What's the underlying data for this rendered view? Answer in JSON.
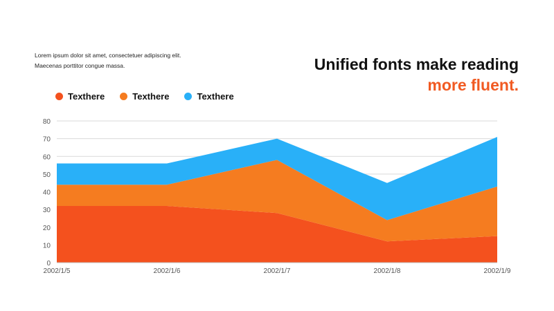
{
  "intro": {
    "line1": "Lorem ipsum dolor sit amet, consectetuer adipiscing elit.",
    "line2": "Maecenas porttitor congue massa."
  },
  "headline": {
    "line1": "Unified fonts make reading",
    "line2": "more fluent."
  },
  "colors": {
    "accent": "#f15a22",
    "series1": "#f4511e",
    "series2": "#f57c20",
    "series3": "#29b0f8",
    "grid": "#d9d9d9"
  },
  "chart_data": {
    "type": "area",
    "stacked": true,
    "categories": [
      "2002/1/5",
      "2002/1/6",
      "2002/1/7",
      "2002/1/8",
      "2002/1/9"
    ],
    "series": [
      {
        "name": "Texthere",
        "values": [
          32,
          32,
          28,
          12,
          15
        ]
      },
      {
        "name": "Texthere",
        "values": [
          12,
          12,
          30,
          12,
          28
        ]
      },
      {
        "name": "Texthere",
        "values": [
          12,
          12,
          12,
          21,
          28
        ]
      }
    ],
    "ylim": [
      0,
      80
    ],
    "yticks": [
      0,
      10,
      20,
      30,
      40,
      50,
      60,
      70,
      80
    ],
    "grid": true,
    "legend": "top-left",
    "xlabel": "",
    "ylabel": ""
  }
}
